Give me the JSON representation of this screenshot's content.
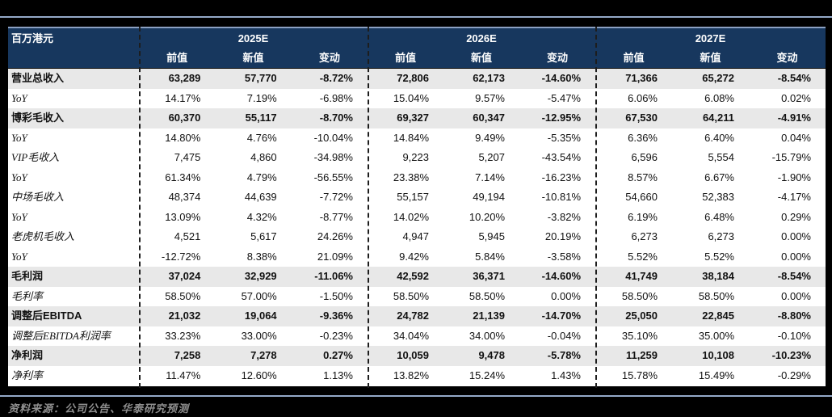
{
  "colors": {
    "header_navy": "#17375E",
    "rule_blue": "#94A9C8",
    "row_shade": "#E8E8E8",
    "source_gray": "#8E8E8E",
    "canvas_black": "#000000"
  },
  "table": {
    "unit_label": "百万港元",
    "year_groups": [
      "2025E",
      "2026E",
      "2027E"
    ],
    "col_headers": [
      "前值",
      "新值",
      "变动"
    ],
    "rows": [
      {
        "label": "营业总收入",
        "bold": true,
        "cells": [
          "63,289",
          "57,770",
          "-8.72%",
          "72,806",
          "62,173",
          "-14.60%",
          "71,366",
          "65,272",
          "-8.54%"
        ]
      },
      {
        "label": "YoY",
        "bold": false,
        "cells": [
          "14.17%",
          "7.19%",
          "-6.98%",
          "15.04%",
          "9.57%",
          "-5.47%",
          "6.06%",
          "6.08%",
          "0.02%"
        ]
      },
      {
        "label": "博彩毛收入",
        "bold": true,
        "cells": [
          "60,370",
          "55,117",
          "-8.70%",
          "69,327",
          "60,347",
          "-12.95%",
          "67,530",
          "64,211",
          "-4.91%"
        ]
      },
      {
        "label": "YoY",
        "bold": false,
        "cells": [
          "14.80%",
          "4.76%",
          "-10.04%",
          "14.84%",
          "9.49%",
          "-5.35%",
          "6.36%",
          "6.40%",
          "0.04%"
        ]
      },
      {
        "label": "VIP毛收入",
        "bold": false,
        "cells": [
          "7,475",
          "4,860",
          "-34.98%",
          "9,223",
          "5,207",
          "-43.54%",
          "6,596",
          "5,554",
          "-15.79%"
        ]
      },
      {
        "label": "YoY",
        "bold": false,
        "cells": [
          "61.34%",
          "4.79%",
          "-56.55%",
          "23.38%",
          "7.14%",
          "-16.23%",
          "8.57%",
          "6.67%",
          "-1.90%"
        ]
      },
      {
        "label": "中场毛收入",
        "bold": false,
        "cells": [
          "48,374",
          "44,639",
          "-7.72%",
          "55,157",
          "49,194",
          "-10.81%",
          "54,660",
          "52,383",
          "-4.17%"
        ]
      },
      {
        "label": "YoY",
        "bold": false,
        "cells": [
          "13.09%",
          "4.32%",
          "-8.77%",
          "14.02%",
          "10.20%",
          "-3.82%",
          "6.19%",
          "6.48%",
          "0.29%"
        ]
      },
      {
        "label": "老虎机毛收入",
        "bold": false,
        "cells": [
          "4,521",
          "5,617",
          "24.26%",
          "4,947",
          "5,945",
          "20.19%",
          "6,273",
          "6,273",
          "0.00%"
        ]
      },
      {
        "label": "YoY",
        "bold": false,
        "cells": [
          "-12.72%",
          "8.38%",
          "21.09%",
          "9.42%",
          "5.84%",
          "-3.58%",
          "5.52%",
          "5.52%",
          "0.00%"
        ]
      },
      {
        "label": "毛利润",
        "bold": true,
        "cells": [
          "37,024",
          "32,929",
          "-11.06%",
          "42,592",
          "36,371",
          "-14.60%",
          "41,749",
          "38,184",
          "-8.54%"
        ]
      },
      {
        "label": "毛利率",
        "bold": false,
        "cells": [
          "58.50%",
          "57.00%",
          "-1.50%",
          "58.50%",
          "58.50%",
          "0.00%",
          "58.50%",
          "58.50%",
          "0.00%"
        ]
      },
      {
        "label": "调整后EBITDA",
        "bold": true,
        "cells": [
          "21,032",
          "19,064",
          "-9.36%",
          "24,782",
          "21,139",
          "-14.70%",
          "25,050",
          "22,845",
          "-8.80%"
        ]
      },
      {
        "label": "调整后EBITDA利润率",
        "bold": false,
        "cells": [
          "33.23%",
          "33.00%",
          "-0.23%",
          "34.04%",
          "34.00%",
          "-0.04%",
          "35.10%",
          "35.00%",
          "-0.10%"
        ]
      },
      {
        "label": "净利润",
        "bold": true,
        "cells": [
          "7,258",
          "7,278",
          "0.27%",
          "10,059",
          "9,478",
          "-5.78%",
          "11,259",
          "10,108",
          "-10.23%"
        ]
      },
      {
        "label": "净利率",
        "bold": false,
        "cells": [
          "11.47%",
          "12.60%",
          "1.13%",
          "13.82%",
          "15.24%",
          "1.43%",
          "15.78%",
          "15.49%",
          "-0.29%"
        ]
      }
    ]
  },
  "source_note": "资料来源：公司公告、华泰研究预测"
}
